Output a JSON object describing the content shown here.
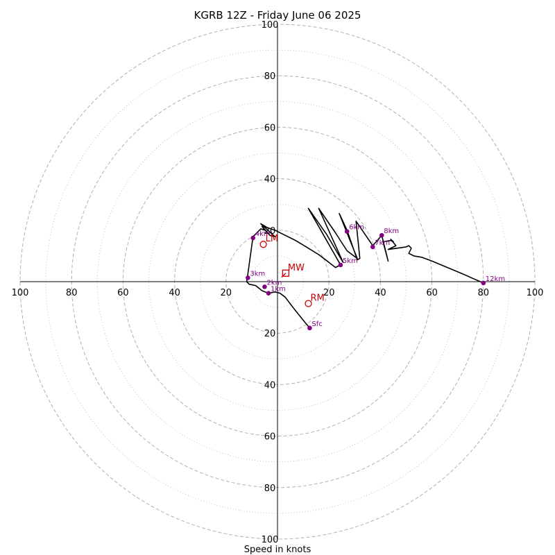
{
  "chart_data": {
    "type": "hodograph",
    "title": "KGRB 12Z - Friday June 06 2025",
    "xlabel": "Speed in knots",
    "xlim": [
      -100,
      100
    ],
    "ylim": [
      -100,
      100
    ],
    "ring_major": [
      20,
      40,
      60,
      80,
      100
    ],
    "ring_minor": [
      10,
      30,
      50,
      70,
      90
    ],
    "tick_values": [
      20,
      40,
      60,
      80,
      100
    ],
    "tick_labels": [
      "20",
      "40",
      "60",
      "80",
      "100"
    ],
    "grid": true,
    "colors": {
      "trace": "#000000",
      "level": "#800080",
      "motion": "#cc0000",
      "ring": "#b0b0b0"
    },
    "trace": [
      [
        12.5,
        -18
      ],
      [
        10,
        -15
      ],
      [
        6,
        -10
      ],
      [
        3,
        -6
      ],
      [
        1,
        -4.5
      ],
      [
        -1,
        -4
      ],
      [
        -3.5,
        -4.5
      ],
      [
        -6,
        -3.5
      ],
      [
        -8.5,
        -1.5
      ],
      [
        -11,
        -1
      ],
      [
        -12,
        0
      ],
      [
        -11.5,
        3
      ],
      [
        -10,
        14
      ],
      [
        -9.5,
        17.5
      ],
      [
        -8,
        19
      ],
      [
        -6.5,
        20.5
      ],
      [
        -5,
        20
      ],
      [
        -6,
        21.5
      ],
      [
        -3,
        18
      ],
      [
        -1,
        17.5
      ],
      [
        -6.5,
        22.5
      ],
      [
        -4,
        21
      ],
      [
        -1,
        20
      ],
      [
        3,
        18
      ],
      [
        7,
        16
      ],
      [
        12,
        13
      ],
      [
        16,
        10.5
      ],
      [
        20,
        7.5
      ],
      [
        22.5,
        5.5
      ],
      [
        24.5,
        6.5
      ],
      [
        12,
        28.5
      ],
      [
        19,
        18.5
      ],
      [
        24,
        10
      ],
      [
        25.5,
        7.5
      ],
      [
        16,
        28.5
      ],
      [
        22.5,
        19
      ],
      [
        27,
        12
      ],
      [
        31,
        9
      ],
      [
        24,
        26.5
      ],
      [
        27,
        20
      ],
      [
        31,
        8.5
      ],
      [
        32,
        9
      ],
      [
        30.5,
        23.5
      ],
      [
        37,
        14
      ],
      [
        40.5,
        18
      ],
      [
        41,
        16
      ],
      [
        43,
        8
      ],
      [
        41,
        15.5
      ],
      [
        44,
        16
      ],
      [
        45,
        15.5
      ],
      [
        44,
        16.5
      ],
      [
        46,
        14
      ],
      [
        43,
        12.5
      ],
      [
        50,
        13.5
      ],
      [
        51,
        14
      ],
      [
        52,
        13
      ],
      [
        51,
        11
      ],
      [
        53,
        10
      ],
      [
        56,
        9.5
      ],
      [
        60,
        8
      ],
      [
        66,
        5.5
      ],
      [
        72,
        3
      ],
      [
        76.5,
        1
      ],
      [
        80,
        -0.5
      ]
    ],
    "levels": [
      {
        "label": "Sfc",
        "u": 12.5,
        "v": -18
      },
      {
        "label": "1km",
        "u": -3.5,
        "v": -4.5
      },
      {
        "label": "2km",
        "u": -5,
        "v": -2
      },
      {
        "label": "3km",
        "u": -11.5,
        "v": 1.5
      },
      {
        "label": "4km",
        "u": -9.5,
        "v": 17
      },
      {
        "label": "5km",
        "u": 24.5,
        "v": 6.5
      },
      {
        "label": "6km",
        "u": 27,
        "v": 19.5
      },
      {
        "label": "7km",
        "u": 37,
        "v": 13.5
      },
      {
        "label": "8km",
        "u": 40.5,
        "v": 18
      },
      {
        "label": "12km",
        "u": 80,
        "v": -0.5
      }
    ],
    "motions": [
      {
        "label": "LM",
        "u": -5.5,
        "v": 14.5,
        "marker": "circle"
      },
      {
        "label": "RM",
        "u": 12,
        "v": -8.5,
        "marker": "circle"
      },
      {
        "label": "MW",
        "u": 3.2,
        "v": 3.3,
        "marker": "square"
      }
    ]
  }
}
